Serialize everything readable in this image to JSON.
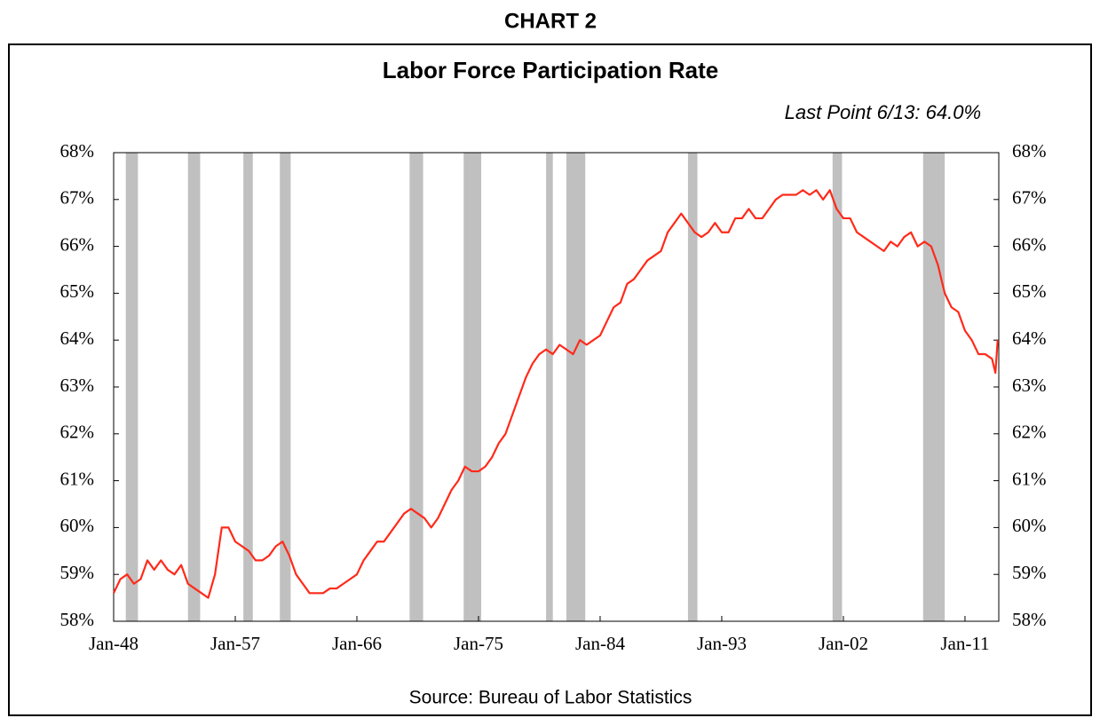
{
  "header": "CHART 2",
  "chart_data": {
    "type": "line",
    "title": "Labor Force Participation Rate",
    "annotation": "Last Point 6/13: 64.0%",
    "source": "Source: Bureau of Labor Statistics",
    "color": "#ff2a1a",
    "recession_color": "#c0c0c0",
    "recessions": [
      [
        1948.9,
        1949.8
      ],
      [
        1953.5,
        1954.4
      ],
      [
        1957.6,
        1958.3
      ],
      [
        1960.3,
        1961.1
      ],
      [
        1969.9,
        1970.9
      ],
      [
        1973.9,
        1975.2
      ],
      [
        1980.0,
        1980.5
      ],
      [
        1981.5,
        1982.9
      ],
      [
        1990.5,
        1991.2
      ],
      [
        2001.2,
        2001.9
      ],
      [
        2007.9,
        2009.5
      ]
    ],
    "x": [
      1948.0,
      1948.5,
      1949.0,
      1949.5,
      1950.0,
      1950.5,
      1951.0,
      1951.5,
      1952.0,
      1952.5,
      1953.0,
      1953.5,
      1954.0,
      1954.5,
      1955.0,
      1955.5,
      1956.0,
      1956.5,
      1957.0,
      1957.5,
      1958.0,
      1958.5,
      1959.0,
      1959.5,
      1960.0,
      1960.5,
      1961.0,
      1961.5,
      1962.0,
      1962.5,
      1963.0,
      1963.5,
      1964.0,
      1964.5,
      1965.0,
      1965.5,
      1966.0,
      1966.5,
      1967.0,
      1967.5,
      1968.0,
      1968.5,
      1969.0,
      1969.5,
      1970.0,
      1970.5,
      1971.0,
      1971.5,
      1972.0,
      1972.5,
      1973.0,
      1973.5,
      1974.0,
      1974.5,
      1975.0,
      1975.5,
      1976.0,
      1976.5,
      1977.0,
      1977.5,
      1978.0,
      1978.5,
      1979.0,
      1979.5,
      1980.0,
      1980.5,
      1981.0,
      1981.5,
      1982.0,
      1982.5,
      1983.0,
      1983.5,
      1984.0,
      1984.5,
      1985.0,
      1985.5,
      1986.0,
      1986.5,
      1987.0,
      1987.5,
      1988.0,
      1988.5,
      1989.0,
      1989.5,
      1990.0,
      1990.5,
      1991.0,
      1991.5,
      1992.0,
      1992.5,
      1993.0,
      1993.5,
      1994.0,
      1994.5,
      1995.0,
      1995.5,
      1996.0,
      1996.5,
      1997.0,
      1997.5,
      1998.0,
      1998.5,
      1999.0,
      1999.5,
      2000.0,
      2000.5,
      2001.0,
      2001.5,
      2002.0,
      2002.5,
      2003.0,
      2003.5,
      2004.0,
      2004.5,
      2005.0,
      2005.5,
      2006.0,
      2006.5,
      2007.0,
      2007.5,
      2008.0,
      2008.5,
      2009.0,
      2009.5,
      2010.0,
      2010.5,
      2011.0,
      2011.5,
      2012.0,
      2012.5,
      2013.0,
      2013.25,
      2013.42
    ],
    "values": [
      58.6,
      58.9,
      59.0,
      58.8,
      58.9,
      59.3,
      59.1,
      59.3,
      59.1,
      59.0,
      59.2,
      58.8,
      58.7,
      58.6,
      58.5,
      59.0,
      60.0,
      60.0,
      59.7,
      59.6,
      59.5,
      59.3,
      59.3,
      59.4,
      59.6,
      59.7,
      59.4,
      59.0,
      58.8,
      58.6,
      58.6,
      58.6,
      58.7,
      58.7,
      58.8,
      58.9,
      59.0,
      59.3,
      59.5,
      59.7,
      59.7,
      59.9,
      60.1,
      60.3,
      60.4,
      60.3,
      60.2,
      60.0,
      60.2,
      60.5,
      60.8,
      61.0,
      61.3,
      61.2,
      61.2,
      61.3,
      61.5,
      61.8,
      62.0,
      62.4,
      62.8,
      63.2,
      63.5,
      63.7,
      63.8,
      63.7,
      63.9,
      63.8,
      63.7,
      64.0,
      63.9,
      64.0,
      64.1,
      64.4,
      64.7,
      64.8,
      65.2,
      65.3,
      65.5,
      65.7,
      65.8,
      65.9,
      66.3,
      66.5,
      66.7,
      66.5,
      66.3,
      66.2,
      66.3,
      66.5,
      66.3,
      66.3,
      66.6,
      66.6,
      66.8,
      66.6,
      66.6,
      66.8,
      67.0,
      67.1,
      67.1,
      67.1,
      67.2,
      67.1,
      67.2,
      67.0,
      67.2,
      66.8,
      66.6,
      66.6,
      66.3,
      66.2,
      66.1,
      66.0,
      65.9,
      66.1,
      66.0,
      66.2,
      66.3,
      66.0,
      66.1,
      66.0,
      65.6,
      65.0,
      64.7,
      64.6,
      64.2,
      64.0,
      63.7,
      63.7,
      63.6,
      63.3,
      64.0
    ],
    "xlim": [
      1948.0,
      2013.5
    ],
    "xticks": [
      {
        "value": 1948,
        "label": "Jan-48"
      },
      {
        "value": 1957,
        "label": "Jan-57"
      },
      {
        "value": 1966,
        "label": "Jan-66"
      },
      {
        "value": 1975,
        "label": "Jan-75"
      },
      {
        "value": 1984,
        "label": "Jan-84"
      },
      {
        "value": 1993,
        "label": "Jan-93"
      },
      {
        "value": 2002,
        "label": "Jan-02"
      },
      {
        "value": 2011,
        "label": "Jan-11"
      }
    ],
    "ylim": [
      58,
      68
    ],
    "yticks": [
      {
        "value": 58,
        "label": "58%"
      },
      {
        "value": 59,
        "label": "59%"
      },
      {
        "value": 60,
        "label": "60%"
      },
      {
        "value": 61,
        "label": "61%"
      },
      {
        "value": 62,
        "label": "62%"
      },
      {
        "value": 63,
        "label": "63%"
      },
      {
        "value": 64,
        "label": "64%"
      },
      {
        "value": 65,
        "label": "65%"
      },
      {
        "value": 66,
        "label": "66%"
      },
      {
        "value": 67,
        "label": "67%"
      },
      {
        "value": 68,
        "label": "68%"
      }
    ],
    "right_axis": true,
    "grid": false
  }
}
